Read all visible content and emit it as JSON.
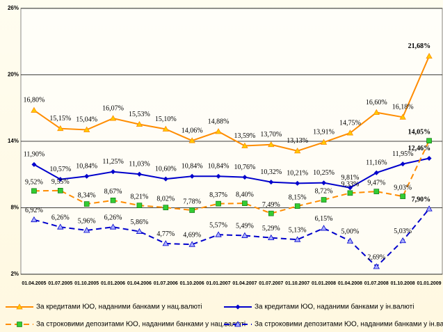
{
  "chart_data": {
    "type": "line",
    "categories": [
      "01.04.2005",
      "01.07.2005",
      "01.10.2005",
      "01.01.2006",
      "01.04.2006",
      "01.07.2006",
      "01.10.2006",
      "01.01.2007",
      "01.04.2007",
      "01.07.2007",
      "01.10.2007",
      "01.01.2008",
      "01.04.2008",
      "01.07.2008",
      "01.10.2008",
      "01.01.2009"
    ],
    "ylim": [
      2,
      26
    ],
    "yticks": [
      {
        "value": 2,
        "label": "2%"
      },
      {
        "value": 8,
        "label": "8%"
      },
      {
        "value": 14,
        "label": "14%"
      },
      {
        "value": 20,
        "label": "20%"
      },
      {
        "value": 26,
        "label": "26%"
      }
    ],
    "grid": true,
    "series": [
      {
        "name": "За кредитами ЮО, наданими банками у нац.валюті",
        "color": "#ff8c00",
        "marker": "triangle",
        "dash": false,
        "values": [
          16.8,
          15.15,
          15.04,
          16.07,
          15.53,
          15.1,
          14.06,
          14.88,
          13.59,
          13.7,
          13.13,
          13.91,
          14.75,
          16.6,
          16.18,
          21.68
        ],
        "value_labels": [
          "16,80%",
          "15,15%",
          "15,04%",
          "16,07%",
          "15,53%",
          "15,10%",
          "14,06%",
          "14,88%",
          "13,59%",
          "13,70%",
          "13,13%",
          "13,91%",
          "14,75%",
          "16,60%",
          "16,18%",
          "21,68%"
        ]
      },
      {
        "name": "За кредитами ЮО, наданими банками у ін.валюті",
        "color": "#0000cc",
        "marker": "diamond",
        "dash": false,
        "values": [
          11.9,
          10.57,
          10.84,
          11.25,
          11.03,
          10.6,
          10.84,
          10.84,
          10.76,
          10.32,
          10.21,
          10.25,
          9.81,
          11.16,
          11.95,
          12.46
        ],
        "value_labels": [
          "11,90%",
          "10,57%",
          "10,84%",
          "11,25%",
          "11,03%",
          "10,60%",
          "10,84%",
          "10,84%",
          "10,76%",
          "10,32%",
          "10,21%",
          "10,25%",
          "9,81%",
          "11,16%",
          "11,95%",
          "12,46%"
        ]
      },
      {
        "name": "За  строковими депозитами ЮО, наданими банками у нац.валюті",
        "color": "#ff8c00",
        "marker": "square",
        "dash": true,
        "values": [
          9.52,
          9.55,
          8.34,
          8.67,
          8.21,
          8.02,
          7.78,
          8.37,
          8.4,
          7.49,
          8.15,
          8.72,
          9.33,
          9.47,
          9.03,
          14.05
        ],
        "value_labels": [
          "9,52%",
          "9,55%",
          "8,34%",
          "8,67%",
          "8,21%",
          "8,02%",
          "7,78%",
          "8,37%",
          "8,40%",
          "7,49%",
          "8,15%",
          "8,72%",
          "9,33%",
          "9,47%",
          "9,03%",
          "14,05%"
        ]
      },
      {
        "name": "За строковими депозитами ЮО, наданими банками у ін.валюті",
        "color": "#0000cc",
        "marker": "triangle",
        "dash": true,
        "values": [
          6.92,
          6.26,
          5.96,
          6.26,
          5.86,
          4.77,
          4.69,
          5.57,
          5.49,
          5.29,
          5.13,
          6.15,
          5.0,
          2.69,
          5.03,
          7.9
        ],
        "value_labels": [
          "6,92%",
          "6,26%",
          "5,96%",
          "6,26%",
          "5,86%",
          "4,77%",
          "4,69%",
          "5,57%",
          "5,49%",
          "5,29%",
          "5,13%",
          "6,15%",
          "5,00%",
          "2,69%",
          "5,03%",
          "7,90%"
        ]
      }
    ]
  }
}
